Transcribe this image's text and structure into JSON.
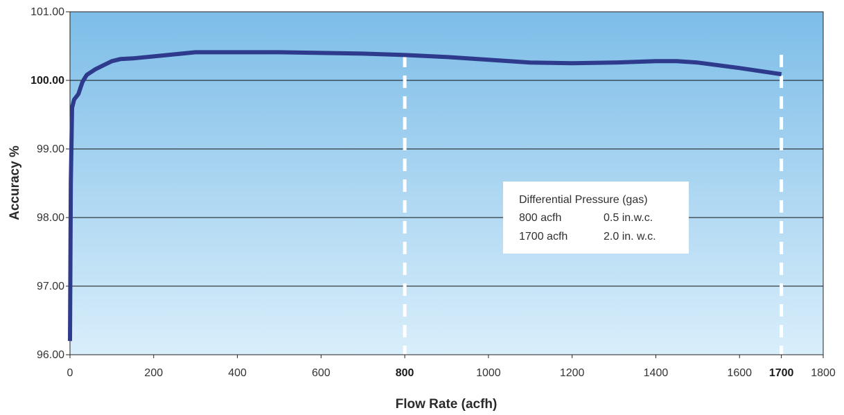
{
  "chart_data": {
    "type": "line",
    "xlabel": "Flow Rate (acfh)",
    "ylabel": "Accuracy %",
    "xlim": [
      0,
      1800
    ],
    "ylim": [
      96.0,
      101.0
    ],
    "x_ticks": [
      "0",
      "200",
      "400",
      "600",
      "800",
      "1000",
      "1200",
      "1400",
      "1600",
      "1700",
      "1800"
    ],
    "x_tick_values": [
      0,
      200,
      400,
      600,
      800,
      1000,
      1200,
      1400,
      1600,
      1700,
      1800
    ],
    "x_ticks_bold": [
      "800",
      "1700"
    ],
    "y_ticks": [
      "96.00",
      "97.00",
      "98.00",
      "99.00",
      "100.00",
      "101.00"
    ],
    "y_tick_values": [
      96,
      97,
      98,
      99,
      100,
      101
    ],
    "y_ticks_bold": [
      "100.00"
    ],
    "reference_lines_x": [
      800,
      1700
    ],
    "series": [
      {
        "x": [
          0,
          2,
          5,
          10,
          20,
          30,
          40,
          60,
          80,
          100,
          120,
          150,
          200,
          250,
          300,
          400,
          500,
          600,
          700,
          800,
          900,
          1000,
          1100,
          1200,
          1300,
          1400,
          1450,
          1500,
          1600,
          1700
        ],
        "y": [
          96.2,
          98.5,
          99.6,
          99.72,
          99.8,
          99.98,
          100.08,
          100.16,
          100.22,
          100.28,
          100.31,
          100.32,
          100.35,
          100.38,
          100.41,
          100.41,
          100.41,
          100.4,
          100.39,
          100.37,
          100.34,
          100.3,
          100.26,
          100.25,
          100.26,
          100.28,
          100.28,
          100.26,
          100.18,
          100.09
        ]
      }
    ],
    "annotation": {
      "title": "Differential Pressure (gas)",
      "rows": [
        {
          "flow": "800 acfh",
          "pressure": "0.5 in.w.c."
        },
        {
          "flow": "1700 acfh",
          "pressure": "2.0 in. w.c."
        }
      ]
    },
    "colors": {
      "line": "#2e3a8c",
      "background_top": "#7dbde8",
      "background_bottom": "#d9eefb",
      "gridline": "#111111",
      "reference_line": "#ffffff"
    },
    "grid": true
  }
}
